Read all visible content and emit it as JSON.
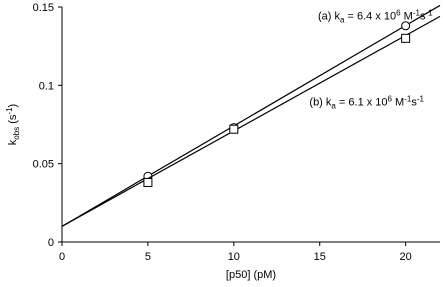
{
  "chart_data": {
    "type": "scatter",
    "x_label": "[p50] (pM)",
    "y_label_segments": [
      {
        "text": "k"
      },
      {
        "text": "obs",
        "shift": "sub"
      },
      {
        "text": " (s"
      },
      {
        "text": "-1",
        "shift": "sup"
      },
      {
        "text": ")"
      }
    ],
    "xlim": [
      0,
      22
    ],
    "xticks": [
      0,
      5,
      10,
      15,
      20
    ],
    "ylim": [
      0,
      0.15
    ],
    "yticks": [
      0,
      0.05,
      0.1,
      0.15
    ],
    "series": [
      {
        "marker": "circle",
        "color": "#000000",
        "x": [
          5,
          10,
          20
        ],
        "values": [
          0.042,
          0.073,
          0.138
        ],
        "fit": {
          "x": [
            0,
            22
          ],
          "values": [
            0.01,
            0.151
          ]
        }
      },
      {
        "marker": "square",
        "color": "#000000",
        "x": [
          5,
          10,
          20
        ],
        "values": [
          0.038,
          0.072,
          0.13
        ],
        "fit": {
          "x": [
            0,
            22
          ],
          "values": [
            0.01,
            0.144
          ]
        }
      }
    ],
    "annotations": [
      {
        "x": 14.9,
        "y": 0.142,
        "segments": [
          {
            "text": "(a)  k"
          },
          {
            "text": "a",
            "shift": "sub"
          },
          {
            "text": " = 6.4 x 10"
          },
          {
            "text": "6",
            "shift": "sup"
          },
          {
            "text": " M"
          },
          {
            "text": "-1",
            "shift": "sup"
          },
          {
            "text": "s"
          },
          {
            "text": "-1",
            "shift": "sup"
          }
        ]
      },
      {
        "x": 14.4,
        "y": 0.087,
        "segments": [
          {
            "text": "(b)  k"
          },
          {
            "text": "a",
            "shift": "sub"
          },
          {
            "text": " = 6.1 x 10"
          },
          {
            "text": "6",
            "shift": "sup"
          },
          {
            "text": " M"
          },
          {
            "text": "-1",
            "shift": "sup"
          },
          {
            "text": "s"
          },
          {
            "text": "-1",
            "shift": "sup"
          }
        ]
      }
    ]
  }
}
